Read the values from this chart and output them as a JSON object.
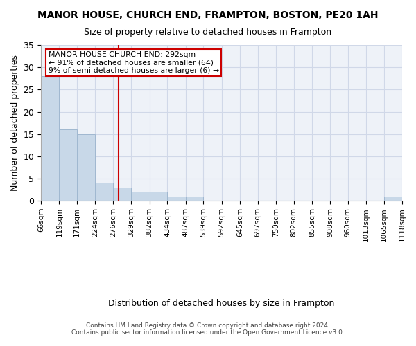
{
  "title": "MANOR HOUSE, CHURCH END, FRAMPTON, BOSTON, PE20 1AH",
  "subtitle": "Size of property relative to detached houses in Frampton",
  "xlabel": "Distribution of detached houses by size in Frampton",
  "ylabel": "Number of detached properties",
  "bin_labels": [
    "66sqm",
    "119sqm",
    "171sqm",
    "224sqm",
    "276sqm",
    "329sqm",
    "382sqm",
    "434sqm",
    "487sqm",
    "539sqm",
    "592sqm",
    "645sqm",
    "697sqm",
    "750sqm",
    "802sqm",
    "855sqm",
    "908sqm",
    "960sqm",
    "1013sqm",
    "1065sqm",
    "1118sqm"
  ],
  "bar_values": [
    28,
    16,
    15,
    4,
    3,
    2,
    2,
    1,
    1,
    0,
    0,
    0,
    0,
    0,
    0,
    0,
    0,
    0,
    0,
    1
  ],
  "bar_color": "#c8d8e8",
  "bar_edgecolor": "#a0b8d0",
  "grid_color": "#d0d8e8",
  "vline_x": 292,
  "vline_color": "#cc0000",
  "ylim": [
    0,
    35
  ],
  "yticks": [
    0,
    5,
    10,
    15,
    20,
    25,
    30,
    35
  ],
  "annotation_title": "MANOR HOUSE CHURCH END: 292sqm",
  "annotation_line1": "← 91% of detached houses are smaller (64)",
  "annotation_line2": "9% of semi-detached houses are larger (6) →",
  "annotation_box_color": "#ffffff",
  "annotation_box_edgecolor": "#cc0000",
  "footer1": "Contains HM Land Registry data © Crown copyright and database right 2024.",
  "footer2": "Contains public sector information licensed under the Open Government Licence v3.0.",
  "bin_width": 53
}
